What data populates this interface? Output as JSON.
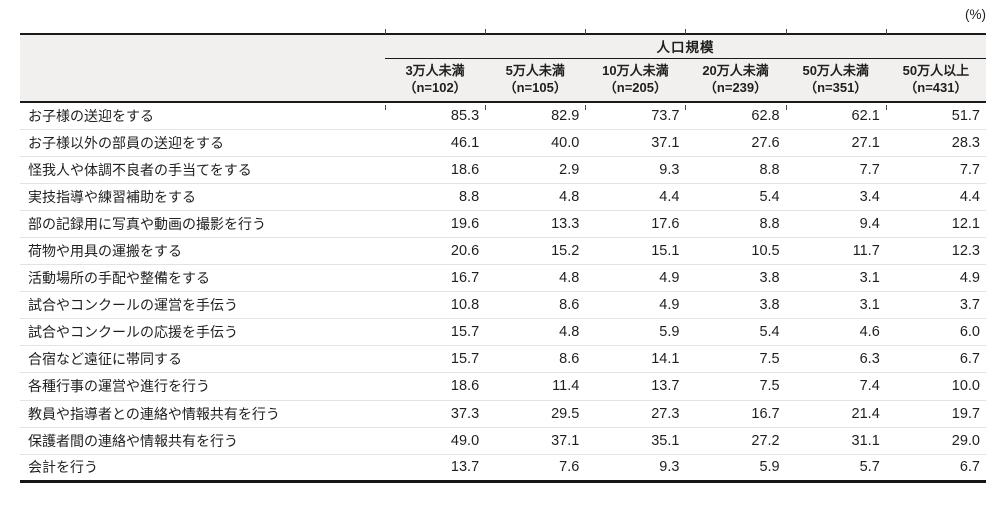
{
  "unit_label": "(%)",
  "chart_data": {
    "type": "table",
    "unit": "(%)",
    "column_group_header": "人口規模",
    "columns": [
      {
        "label": "3万人未満",
        "n": "（n=102）"
      },
      {
        "label": "5万人未満",
        "n": "（n=105）"
      },
      {
        "label": "10万人未満",
        "n": "（n=205）"
      },
      {
        "label": "20万人未満",
        "n": "（n=239）"
      },
      {
        "label": "50万人未満",
        "n": "（n=351）"
      },
      {
        "label": "50万人以上",
        "n": "（n=431）"
      }
    ],
    "rows": [
      {
        "label": "お子様の送迎をする",
        "values": [
          "85.3",
          "82.9",
          "73.7",
          "62.8",
          "62.1",
          "51.7"
        ]
      },
      {
        "label": "お子様以外の部員の送迎をする",
        "values": [
          "46.1",
          "40.0",
          "37.1",
          "27.6",
          "27.1",
          "28.3"
        ]
      },
      {
        "label": "怪我人や体調不良者の手当てをする",
        "values": [
          "18.6",
          "2.9",
          "9.3",
          "8.8",
          "7.7",
          "7.7"
        ]
      },
      {
        "label": "実技指導や練習補助をする",
        "values": [
          "8.8",
          "4.8",
          "4.4",
          "5.4",
          "3.4",
          "4.4"
        ]
      },
      {
        "label": "部の記録用に写真や動画の撮影を行う",
        "values": [
          "19.6",
          "13.3",
          "17.6",
          "8.8",
          "9.4",
          "12.1"
        ]
      },
      {
        "label": "荷物や用具の運搬をする",
        "values": [
          "20.6",
          "15.2",
          "15.1",
          "10.5",
          "11.7",
          "12.3"
        ]
      },
      {
        "label": "活動場所の手配や整備をする",
        "values": [
          "16.7",
          "4.8",
          "4.9",
          "3.8",
          "3.1",
          "4.9"
        ]
      },
      {
        "label": "試合やコンクールの運営を手伝う",
        "values": [
          "10.8",
          "8.6",
          "4.9",
          "3.8",
          "3.1",
          "3.7"
        ]
      },
      {
        "label": "試合やコンクールの応援を手伝う",
        "values": [
          "15.7",
          "4.8",
          "5.9",
          "5.4",
          "4.6",
          "6.0"
        ]
      },
      {
        "label": "合宿など遠征に帯同する",
        "values": [
          "15.7",
          "8.6",
          "14.1",
          "7.5",
          "6.3",
          "6.7"
        ]
      },
      {
        "label": "各種行事の運営や進行を行う",
        "values": [
          "18.6",
          "11.4",
          "13.7",
          "7.5",
          "7.4",
          "10.0"
        ]
      },
      {
        "label": "教員や指導者との連絡や情報共有を行う",
        "values": [
          "37.3",
          "29.5",
          "27.3",
          "16.7",
          "21.4",
          "19.7"
        ]
      },
      {
        "label": "保護者間の連絡や情報共有を行う",
        "values": [
          "49.0",
          "37.1",
          "35.1",
          "27.2",
          "31.1",
          "29.0"
        ]
      },
      {
        "label": "会計を行う",
        "values": [
          "13.7",
          "7.6",
          "9.3",
          "5.9",
          "5.7",
          "6.7"
        ]
      }
    ]
  }
}
